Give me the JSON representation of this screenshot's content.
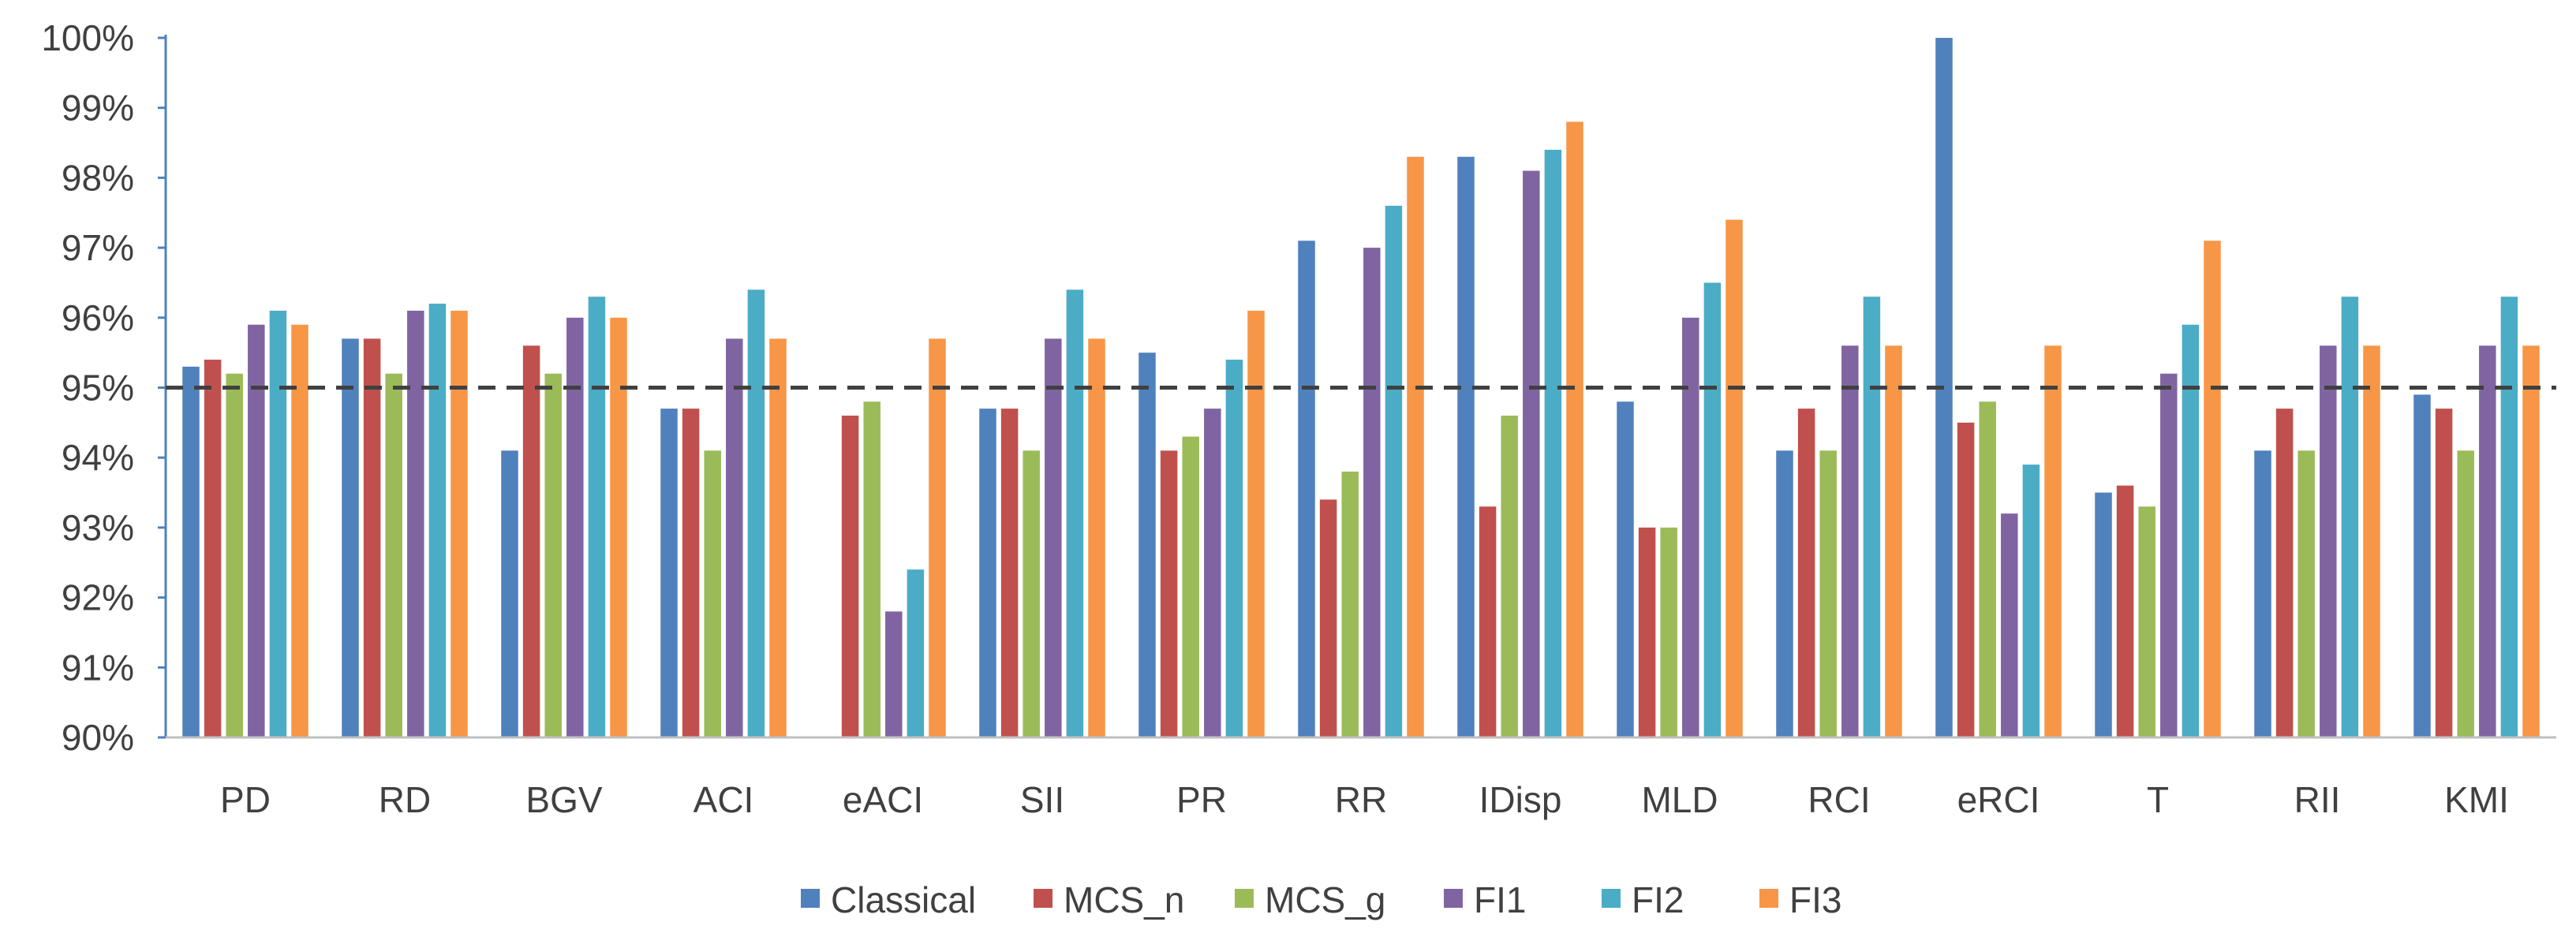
{
  "chart_data": {
    "type": "bar",
    "categories": [
      "PD",
      "RD",
      "BGV",
      "ACI",
      "eACI",
      "SII",
      "PR",
      "RR",
      "IDisp",
      "MLD",
      "RCI",
      "eRCI",
      "T",
      "RII",
      "KMI"
    ],
    "series": [
      {
        "name": "Classical",
        "color": "#4F81BD",
        "values": [
          95.3,
          95.7,
          94.1,
          94.7,
          null,
          94.7,
          95.5,
          97.1,
          98.3,
          94.8,
          94.1,
          100.0,
          93.5,
          94.1,
          94.9
        ]
      },
      {
        "name": "MCS_n",
        "color": "#C0504D",
        "values": [
          95.4,
          95.7,
          95.6,
          94.7,
          94.6,
          94.7,
          94.1,
          93.4,
          93.3,
          93.0,
          94.7,
          94.5,
          93.6,
          94.7,
          94.7
        ]
      },
      {
        "name": "MCS_g",
        "color": "#9BBB59",
        "values": [
          95.2,
          95.2,
          95.2,
          94.1,
          94.8,
          94.1,
          94.3,
          93.8,
          94.6,
          93.0,
          94.1,
          94.8,
          93.3,
          94.1,
          94.1
        ]
      },
      {
        "name": "FI1",
        "color": "#8064A2",
        "values": [
          95.9,
          96.1,
          96.0,
          95.7,
          91.8,
          95.7,
          94.7,
          97.0,
          98.1,
          96.0,
          95.6,
          93.2,
          95.2,
          95.6,
          95.6
        ]
      },
      {
        "name": "FI2",
        "color": "#4BACC6",
        "values": [
          96.1,
          96.2,
          96.3,
          96.4,
          92.4,
          96.4,
          95.4,
          97.6,
          98.4,
          96.5,
          96.3,
          93.9,
          95.9,
          96.3,
          96.3
        ]
      },
      {
        "name": "FI3",
        "color": "#F79646",
        "values": [
          95.9,
          96.1,
          96.0,
          95.7,
          95.7,
          95.7,
          96.1,
          98.3,
          98.8,
          97.4,
          95.6,
          95.6,
          97.1,
          95.6,
          95.6
        ]
      }
    ],
    "ylim": [
      90,
      100
    ],
    "y_tick_labels": [
      "90%",
      "91%",
      "92%",
      "93%",
      "94%",
      "95%",
      "96%",
      "97%",
      "98%",
      "99%",
      "100%"
    ],
    "reference_line": {
      "value": 95,
      "style": "dashed",
      "color": "#404040"
    },
    "grid": false,
    "legend_position": "bottom",
    "title": "",
    "xlabel": "",
    "ylabel": ""
  }
}
